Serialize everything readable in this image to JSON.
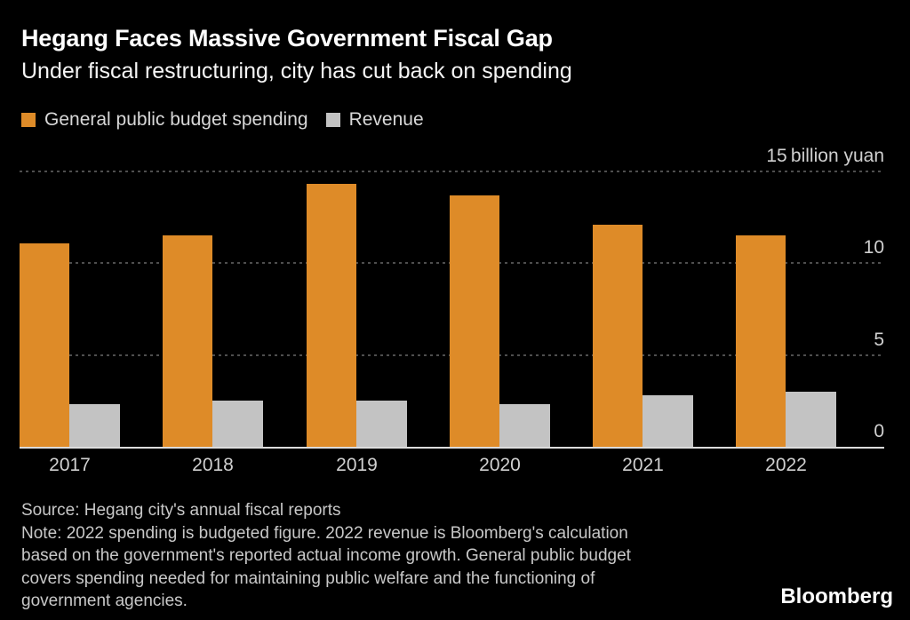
{
  "chart_data": {
    "type": "bar",
    "title": "Hegang Faces Massive Government Fiscal Gap",
    "subtitle": "Under fiscal restructuring, city has cut back on spending",
    "unit": "billion yuan",
    "categories": [
      "2017",
      "2018",
      "2019",
      "2020",
      "2021",
      "2022"
    ],
    "series": [
      {
        "name": "General public budget spending",
        "color": "#DE8B28",
        "values": [
          11.1,
          11.5,
          14.3,
          13.7,
          12.1,
          11.5
        ]
      },
      {
        "name": "Revenue",
        "color": "#C3C3C3",
        "values": [
          2.3,
          2.5,
          2.5,
          2.3,
          2.8,
          3.0
        ]
      }
    ],
    "ylim": [
      0,
      15
    ],
    "y_ticks": [
      0,
      5,
      10,
      15
    ],
    "y_tick_labels": [
      "0",
      "5",
      "10",
      "15 billion yuan"
    ],
    "grid": "horizontal-dotted",
    "legend_position": "top-left"
  },
  "footer": {
    "source": "Source: Hegang city's annual fiscal reports",
    "note_lines": [
      "Note: 2022 spending is budgeted figure. 2022 revenue is Bloomberg's calculation",
      "based on the government's reported actual income growth. General public budget",
      "covers spending needed for maintaining public welfare and the functioning of",
      "government agencies."
    ],
    "brand": "Bloomberg"
  },
  "colors": {
    "background": "#000000",
    "title_text": "#FFFFFF",
    "spending_bar": "#DE8B28",
    "revenue_bar": "#C3C3C3",
    "gridline": "#4E4E4E",
    "baseline": "#DCDCDC",
    "tick_label": "#D0D0D0",
    "footer_text": "#C8C8C8"
  }
}
